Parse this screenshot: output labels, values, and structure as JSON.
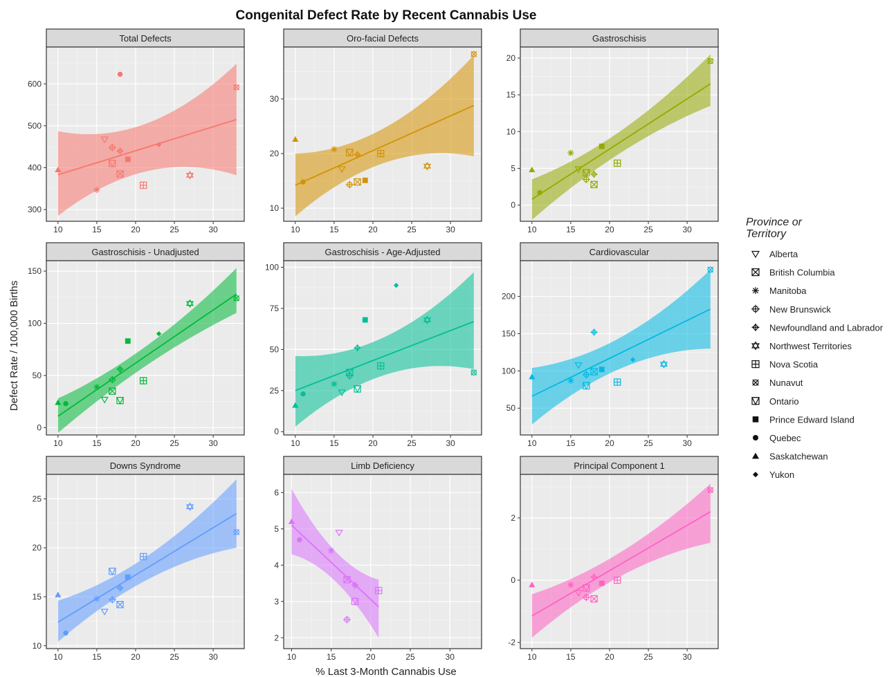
{
  "figure": {
    "title": "Congenital Defect Rate by Recent Cannabis Use",
    "xlabel": "% Last 3-Month Cannabis Use",
    "ylabel": "Defect Rate / 100,000 Births"
  },
  "legend": {
    "title_line1": "Province or",
    "title_line2": "Territory",
    "items": [
      {
        "label": "Alberta",
        "shape": "triangle-down-open"
      },
      {
        "label": "British Columbia",
        "shape": "square-x"
      },
      {
        "label": "Manitoba",
        "shape": "asterisk"
      },
      {
        "label": "New Brunswick",
        "shape": "circle-plus"
      },
      {
        "label": "Newfoundland and Labrador",
        "shape": "diamond-plus"
      },
      {
        "label": "Northwest Territories",
        "shape": "hexagram"
      },
      {
        "label": "Nova Scotia",
        "shape": "square-plus"
      },
      {
        "label": "Nunavut",
        "shape": "circle-x"
      },
      {
        "label": "Ontario",
        "shape": "square-triangle"
      },
      {
        "label": "Prince Edward Island",
        "shape": "square-filled"
      },
      {
        "label": "Quebec",
        "shape": "circle-filled"
      },
      {
        "label": "Saskatchewan",
        "shape": "triangle-filled"
      },
      {
        "label": "Yukon",
        "shape": "diamond-filled"
      }
    ]
  },
  "chart_data": [
    {
      "type": "scatter",
      "title": "Total Defects",
      "color": "#F8766D",
      "xlim": [
        8.5,
        34
      ],
      "ylim": [
        272,
        688
      ],
      "xticks": [
        10,
        15,
        20,
        25,
        30
      ],
      "yticks": [
        300,
        400,
        500,
        600
      ],
      "fit": {
        "x": [
          10,
          33
        ],
        "y": [
          383,
          515
        ],
        "lower": [
          285,
          382
        ],
        "upper": [
          487,
          648
        ]
      },
      "points": [
        {
          "province": "Saskatchewan",
          "x": 10,
          "y": 395
        },
        {
          "province": "Manitoba",
          "x": 15,
          "y": 347
        },
        {
          "province": "Alberta",
          "x": 16,
          "y": 468
        },
        {
          "province": "New Brunswick",
          "x": 17,
          "y": 448
        },
        {
          "province": "Ontario",
          "x": 17,
          "y": 410
        },
        {
          "province": "British Columbia",
          "x": 18,
          "y": 385
        },
        {
          "province": "Quebec",
          "x": 18,
          "y": 623
        },
        {
          "province": "Newfoundland and Labrador",
          "x": 18,
          "y": 440
        },
        {
          "province": "Prince Edward Island",
          "x": 19,
          "y": 420
        },
        {
          "province": "Nova Scotia",
          "x": 21,
          "y": 358
        },
        {
          "province": "Yukon",
          "x": 23,
          "y": 455
        },
        {
          "province": "Northwest Territories",
          "x": 27,
          "y": 382
        },
        {
          "province": "Nunavut",
          "x": 33,
          "y": 592
        }
      ]
    },
    {
      "type": "scatter",
      "title": "Oro-facial Defects",
      "color": "#D39200",
      "xlim": [
        8.5,
        34
      ],
      "ylim": [
        7.6,
        39.5
      ],
      "xticks": [
        10,
        15,
        20,
        25,
        30
      ],
      "yticks": [
        10,
        20,
        30
      ],
      "fit": {
        "x": [
          10,
          33
        ],
        "y": [
          14.2,
          28.8
        ],
        "lower": [
          8.5,
          19.5
        ],
        "upper": [
          20.0,
          38.0
        ]
      },
      "points": [
        {
          "province": "Saskatchewan",
          "x": 10,
          "y": 22.6
        },
        {
          "province": "Quebec",
          "x": 11,
          "y": 14.8
        },
        {
          "province": "Manitoba",
          "x": 15,
          "y": 20.8
        },
        {
          "province": "Alberta",
          "x": 16,
          "y": 17.2
        },
        {
          "province": "New Brunswick",
          "x": 17,
          "y": 14.3
        },
        {
          "province": "Ontario",
          "x": 17,
          "y": 20.2
        },
        {
          "province": "British Columbia",
          "x": 18,
          "y": 14.8
        },
        {
          "province": "Newfoundland and Labrador",
          "x": 18,
          "y": 19.8
        },
        {
          "province": "Prince Edward Island",
          "x": 19,
          "y": 15.1
        },
        {
          "province": "Nova Scotia",
          "x": 21,
          "y": 20.0
        },
        {
          "province": "Northwest Territories",
          "x": 27,
          "y": 17.7
        },
        {
          "province": "Nunavut",
          "x": 33,
          "y": 38.2
        }
      ]
    },
    {
      "type": "scatter",
      "title": "Gastroschisis",
      "color": "#93AA00",
      "xlim": [
        8.5,
        34
      ],
      "ylim": [
        -2.2,
        21.5
      ],
      "xticks": [
        10,
        15,
        20,
        25,
        30
      ],
      "yticks": [
        0,
        5,
        10,
        15,
        20
      ],
      "fit": {
        "x": [
          10,
          33
        ],
        "y": [
          0.8,
          16.5
        ],
        "lower": [
          -2.0,
          13.5
        ],
        "upper": [
          3.5,
          20.5
        ]
      },
      "points": [
        {
          "province": "Saskatchewan",
          "x": 10,
          "y": 4.8
        },
        {
          "province": "Quebec",
          "x": 11,
          "y": 1.7
        },
        {
          "province": "Manitoba",
          "x": 15,
          "y": 7.1
        },
        {
          "province": "Alberta",
          "x": 16,
          "y": 4.9
        },
        {
          "province": "Ontario",
          "x": 17,
          "y": 4.4
        },
        {
          "province": "New Brunswick",
          "x": 17,
          "y": 3.5
        },
        {
          "province": "Newfoundland and Labrador",
          "x": 18,
          "y": 4.2
        },
        {
          "province": "British Columbia",
          "x": 18,
          "y": 2.8
        },
        {
          "province": "Prince Edward Island",
          "x": 19,
          "y": 8.0
        },
        {
          "province": "Nova Scotia",
          "x": 21,
          "y": 5.7
        },
        {
          "province": "Nunavut",
          "x": 33,
          "y": 19.6
        }
      ]
    },
    {
      "type": "scatter",
      "title": "Gastroschisis - Unadjusted",
      "color": "#00BA38",
      "xlim": [
        8.5,
        34
      ],
      "ylim": [
        -7,
        160
      ],
      "xticks": [
        10,
        15,
        20,
        25,
        30
      ],
      "yticks": [
        0,
        50,
        100,
        150
      ],
      "fit": {
        "x": [
          10,
          33
        ],
        "y": [
          11,
          128
        ],
        "lower": [
          -5,
          110
        ],
        "upper": [
          28,
          153
        ]
      },
      "points": [
        {
          "province": "Saskatchewan",
          "x": 10,
          "y": 24
        },
        {
          "province": "Quebec",
          "x": 11,
          "y": 23
        },
        {
          "province": "Manitoba",
          "x": 15,
          "y": 39
        },
        {
          "province": "Alberta",
          "x": 16,
          "y": 27
        },
        {
          "province": "British Columbia",
          "x": 17,
          "y": 35
        },
        {
          "province": "New Brunswick",
          "x": 17,
          "y": 46
        },
        {
          "province": "Newfoundland and Labrador",
          "x": 18,
          "y": 56
        },
        {
          "province": "Ontario",
          "x": 18,
          "y": 26
        },
        {
          "province": "Prince Edward Island",
          "x": 19,
          "y": 83
        },
        {
          "province": "Nova Scotia",
          "x": 21,
          "y": 45
        },
        {
          "province": "Yukon",
          "x": 23,
          "y": 90
        },
        {
          "province": "Northwest Territories",
          "x": 27,
          "y": 119
        },
        {
          "province": "Nunavut",
          "x": 33,
          "y": 124
        }
      ]
    },
    {
      "type": "scatter",
      "title": "Gastroschisis - Age-Adjusted",
      "color": "#00BF96",
      "xlim": [
        8.5,
        34
      ],
      "ylim": [
        -2,
        104
      ],
      "xticks": [
        10,
        15,
        20,
        25,
        30
      ],
      "yticks": [
        0,
        25,
        50,
        75,
        100
      ],
      "fit": {
        "x": [
          10,
          33
        ],
        "y": [
          25,
          67
        ],
        "lower": [
          3,
          38
        ],
        "upper": [
          46,
          97
        ]
      },
      "points": [
        {
          "province": "Saskatchewan",
          "x": 10,
          "y": 16
        },
        {
          "province": "Quebec",
          "x": 11,
          "y": 23
        },
        {
          "province": "Manitoba",
          "x": 15,
          "y": 29
        },
        {
          "province": "Alberta",
          "x": 16,
          "y": 24
        },
        {
          "province": "British Columbia",
          "x": 17,
          "y": 36
        },
        {
          "province": "New Brunswick",
          "x": 17,
          "y": 34
        },
        {
          "province": "Ontario",
          "x": 18,
          "y": 26
        },
        {
          "province": "Newfoundland and Labrador",
          "x": 18,
          "y": 51
        },
        {
          "province": "Prince Edward Island",
          "x": 19,
          "y": 68
        },
        {
          "province": "Nova Scotia",
          "x": 21,
          "y": 40
        },
        {
          "province": "Yukon",
          "x": 23,
          "y": 89
        },
        {
          "province": "Northwest Territories",
          "x": 27,
          "y": 68
        },
        {
          "province": "Nunavut",
          "x": 33,
          "y": 36
        }
      ]
    },
    {
      "type": "scatter",
      "title": "Cardiovascular",
      "color": "#00B9E3",
      "xlim": [
        8.5,
        34
      ],
      "ylim": [
        14,
        248
      ],
      "xticks": [
        10,
        15,
        20,
        25,
        30
      ],
      "yticks": [
        50,
        100,
        150,
        200
      ],
      "fit": {
        "x": [
          10,
          33
        ],
        "y": [
          66,
          183
        ],
        "lower": [
          28,
          130
        ],
        "upper": [
          104,
          236
        ]
      },
      "points": [
        {
          "province": "Saskatchewan",
          "x": 10,
          "y": 92
        },
        {
          "province": "Manitoba",
          "x": 15,
          "y": 87
        },
        {
          "province": "Alberta",
          "x": 16,
          "y": 108
        },
        {
          "province": "New Brunswick",
          "x": 17,
          "y": 95
        },
        {
          "province": "Ontario",
          "x": 17,
          "y": 80
        },
        {
          "province": "British Columbia",
          "x": 18,
          "y": 99
        },
        {
          "province": "Newfoundland and Labrador",
          "x": 18,
          "y": 152
        },
        {
          "province": "Prince Edward Island",
          "x": 19,
          "y": 102
        },
        {
          "province": "Nova Scotia",
          "x": 21,
          "y": 85
        },
        {
          "province": "Yukon",
          "x": 23,
          "y": 115
        },
        {
          "province": "Northwest Territories",
          "x": 27,
          "y": 109
        },
        {
          "province": "Nunavut",
          "x": 33,
          "y": 236
        }
      ]
    },
    {
      "type": "scatter",
      "title": "Downs Syndrome",
      "color": "#619CFF",
      "xlim": [
        8.5,
        34
      ],
      "ylim": [
        9.7,
        27.5
      ],
      "xticks": [
        10,
        15,
        20,
        25,
        30
      ],
      "yticks": [
        10,
        15,
        20,
        25
      ],
      "fit": {
        "x": [
          10,
          33
        ],
        "y": [
          12.4,
          23.5
        ],
        "lower": [
          10.4,
          20.0
        ],
        "upper": [
          14.6,
          27.0
        ]
      },
      "points": [
        {
          "province": "Saskatchewan",
          "x": 10,
          "y": 15.2
        },
        {
          "province": "Quebec",
          "x": 11,
          "y": 11.3
        },
        {
          "province": "Manitoba",
          "x": 15,
          "y": 14.8
        },
        {
          "province": "Alberta",
          "x": 16,
          "y": 13.5
        },
        {
          "province": "New Brunswick",
          "x": 17,
          "y": 14.7
        },
        {
          "province": "Ontario",
          "x": 17,
          "y": 17.6
        },
        {
          "province": "British Columbia",
          "x": 18,
          "y": 14.2
        },
        {
          "province": "Newfoundland and Labrador",
          "x": 18,
          "y": 15.9
        },
        {
          "province": "Prince Edward Island",
          "x": 19,
          "y": 17.0
        },
        {
          "province": "Nova Scotia",
          "x": 21,
          "y": 19.1
        },
        {
          "province": "Northwest Territories",
          "x": 27,
          "y": 24.2
        },
        {
          "province": "Nunavut",
          "x": 33,
          "y": 21.6
        }
      ]
    },
    {
      "type": "scatter",
      "title": "Limb Deficiency",
      "color": "#DB72FB",
      "xlim": [
        9.0,
        34
      ],
      "ylim": [
        1.7,
        6.5
      ],
      "xticks": [
        10,
        15,
        20,
        25,
        30
      ],
      "yticks": [
        2,
        3,
        4,
        5,
        6
      ],
      "fit": {
        "x": [
          10,
          21
        ],
        "y": [
          5.1,
          2.85
        ],
        "lower": [
          4.3,
          2.0
        ],
        "upper": [
          6.1,
          3.6
        ]
      },
      "points": [
        {
          "province": "Saskatchewan",
          "x": 10,
          "y": 5.2
        },
        {
          "province": "Quebec",
          "x": 11,
          "y": 4.7
        },
        {
          "province": "Manitoba",
          "x": 15,
          "y": 4.4
        },
        {
          "province": "Alberta",
          "x": 16,
          "y": 4.9
        },
        {
          "province": "British Columbia",
          "x": 17,
          "y": 3.6
        },
        {
          "province": "New Brunswick",
          "x": 17,
          "y": 2.5
        },
        {
          "province": "Newfoundland and Labrador",
          "x": 18,
          "y": 3.45
        },
        {
          "province": "Ontario",
          "x": 18,
          "y": 3.0
        },
        {
          "province": "Nova Scotia",
          "x": 21,
          "y": 3.3
        }
      ]
    },
    {
      "type": "scatter",
      "title": "Principal Component 1",
      "color": "#FF61C3",
      "xlim": [
        8.5,
        34
      ],
      "ylim": [
        -2.2,
        3.4
      ],
      "xticks": [
        10,
        15,
        20,
        25,
        30
      ],
      "yticks": [
        -2,
        0,
        2
      ],
      "fit": {
        "x": [
          10,
          33
        ],
        "y": [
          -1.15,
          2.2
        ],
        "lower": [
          -1.85,
          1.2
        ],
        "upper": [
          -0.45,
          3.1
        ]
      },
      "points": [
        {
          "province": "Saskatchewan",
          "x": 10,
          "y": -0.15
        },
        {
          "province": "Manitoba",
          "x": 15,
          "y": -0.15
        },
        {
          "province": "Alberta",
          "x": 16,
          "y": -0.4
        },
        {
          "province": "New Brunswick",
          "x": 17,
          "y": -0.55
        },
        {
          "province": "Ontario",
          "x": 17,
          "y": -0.25
        },
        {
          "province": "British Columbia",
          "x": 18,
          "y": -0.6
        },
        {
          "province": "Newfoundland and Labrador",
          "x": 18,
          "y": 0.1
        },
        {
          "province": "Prince Edward Island",
          "x": 19,
          "y": -0.1
        },
        {
          "province": "Nova Scotia",
          "x": 21,
          "y": 0.0
        },
        {
          "province": "Nunavut",
          "x": 33,
          "y": 2.9
        }
      ]
    }
  ]
}
